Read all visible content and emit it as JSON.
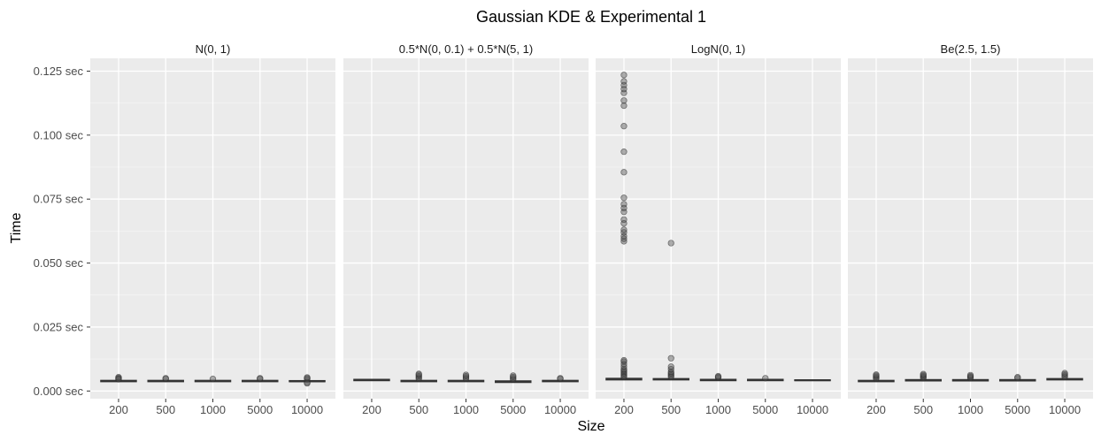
{
  "chart_data": {
    "type": "box",
    "title": "Gaussian KDE & Experimental 1",
    "xlabel": "Size",
    "ylabel": "Time",
    "ylim": [
      -0.003,
      0.13
    ],
    "y_ticks": [
      0.0,
      0.025,
      0.05,
      0.075,
      0.1,
      0.125
    ],
    "y_tick_labels": [
      "0.000 sec",
      "0.025 sec",
      "0.050 sec",
      "0.075 sec",
      "0.100 sec",
      "0.125 sec"
    ],
    "categories": [
      "200",
      "500",
      "1000",
      "5000",
      "10000"
    ],
    "grid": true,
    "panels": [
      {
        "name": "N(0, 1)",
        "boxes": [
          {
            "x": "200",
            "q1": 0.0036,
            "median": 0.0039,
            "q3": 0.0042,
            "outliers": [
              0.0048,
              0.0051,
              0.0054,
              0.0046
            ]
          },
          {
            "x": "500",
            "q1": 0.0036,
            "median": 0.0039,
            "q3": 0.0042,
            "outliers": [
              0.0047,
              0.005
            ]
          },
          {
            "x": "1000",
            "q1": 0.0036,
            "median": 0.0039,
            "q3": 0.0042,
            "outliers": [
              0.0047
            ]
          },
          {
            "x": "5000",
            "q1": 0.0036,
            "median": 0.0039,
            "q3": 0.0042,
            "outliers": [
              0.0047,
              0.005
            ]
          },
          {
            "x": "10000",
            "q1": 0.0036,
            "median": 0.0038,
            "q3": 0.0041,
            "outliers": [
              0.0033,
              0.003,
              0.0046,
              0.005,
              0.0053
            ]
          }
        ]
      },
      {
        "name": "0.5*N(0, 0.1) + 0.5*N(5, 1)",
        "boxes": [
          {
            "x": "200",
            "q1": 0.004,
            "median": 0.0043,
            "q3": 0.0046,
            "outliers": []
          },
          {
            "x": "500",
            "q1": 0.0036,
            "median": 0.0039,
            "q3": 0.0042,
            "outliers": [
              0.0048,
              0.0053,
              0.0058,
              0.0063,
              0.0067
            ]
          },
          {
            "x": "1000",
            "q1": 0.0036,
            "median": 0.0039,
            "q3": 0.0042,
            "outliers": [
              0.0048,
              0.0053,
              0.0058,
              0.0063
            ]
          },
          {
            "x": "5000",
            "q1": 0.0033,
            "median": 0.0036,
            "q3": 0.004,
            "outliers": [
              0.0045,
              0.005,
              0.0055,
              0.006
            ]
          },
          {
            "x": "10000",
            "q1": 0.0036,
            "median": 0.0039,
            "q3": 0.0042,
            "outliers": [
              0.0047,
              0.005
            ]
          }
        ]
      },
      {
        "name": "LogN(0, 1)",
        "boxes": [
          {
            "x": "200",
            "q1": 0.0043,
            "median": 0.0046,
            "q3": 0.005,
            "outliers": [
              0.0055,
              0.006,
              0.0065,
              0.007,
              0.0075,
              0.008,
              0.0085,
              0.0095,
              0.0105,
              0.0115,
              0.012,
              0.0585,
              0.0595,
              0.0605,
              0.062,
              0.063,
              0.0655,
              0.067,
              0.07,
              0.0715,
              0.073,
              0.0755,
              0.0855,
              0.0935,
              0.1035,
              0.1115,
              0.1135,
              0.1165,
              0.118,
              0.1195,
              0.121,
              0.1235
            ]
          },
          {
            "x": "500",
            "q1": 0.0043,
            "median": 0.0046,
            "q3": 0.0049,
            "outliers": [
              0.0055,
              0.006,
              0.0065,
              0.007,
              0.0075,
              0.0085,
              0.0095,
              0.0128,
              0.0578
            ]
          },
          {
            "x": "1000",
            "q1": 0.004,
            "median": 0.0043,
            "q3": 0.0046,
            "outliers": [
              0.0052,
              0.0055,
              0.0058
            ]
          },
          {
            "x": "5000",
            "q1": 0.004,
            "median": 0.0043,
            "q3": 0.0046,
            "outliers": [
              0.005
            ]
          },
          {
            "x": "10000",
            "q1": 0.004,
            "median": 0.0042,
            "q3": 0.0044,
            "outliers": []
          }
        ]
      },
      {
        "name": "Be(2.5, 1.5)",
        "boxes": [
          {
            "x": "200",
            "q1": 0.0036,
            "median": 0.0039,
            "q3": 0.0042,
            "outliers": [
              0.0048,
              0.0052,
              0.0056,
              0.006,
              0.0064
            ]
          },
          {
            "x": "500",
            "q1": 0.0039,
            "median": 0.0042,
            "q3": 0.0045,
            "outliers": [
              0.005,
              0.0054,
              0.0058,
              0.0062,
              0.0066
            ]
          },
          {
            "x": "1000",
            "q1": 0.0039,
            "median": 0.0042,
            "q3": 0.0045,
            "outliers": [
              0.005,
              0.0054,
              0.0058,
              0.0062
            ]
          },
          {
            "x": "5000",
            "q1": 0.0039,
            "median": 0.0042,
            "q3": 0.0045,
            "outliers": [
              0.005,
              0.0054
            ]
          },
          {
            "x": "10000",
            "q1": 0.0043,
            "median": 0.0046,
            "q3": 0.0049,
            "outliers": [
              0.0055,
              0.006,
              0.0065,
              0.007
            ]
          }
        ]
      }
    ]
  }
}
